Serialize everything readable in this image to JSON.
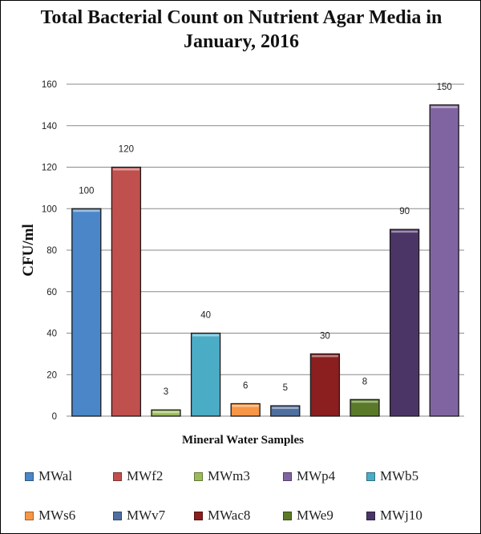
{
  "chart_data": {
    "type": "bar",
    "title": "Total Bacterial Count on Nutrient Agar Media in January, 2016",
    "xlabel": "Mineral Water Samples",
    "ylabel": "CFU/ml",
    "ylim": [
      0,
      160
    ],
    "yticks": [
      0,
      20,
      40,
      60,
      80,
      100,
      120,
      140,
      160
    ],
    "grid": true,
    "legend": "bottom",
    "categories": [
      "MWal",
      "MWf2",
      "MWm3",
      "MWp4",
      "MWb5",
      "MWs6",
      "MWv7",
      "MWac8",
      "MWe9",
      "MWj10"
    ],
    "values": [
      100,
      120,
      3,
      150,
      40,
      6,
      5,
      30,
      8,
      90
    ],
    "data_labels": [
      "100",
      "120",
      "3",
      "150",
      "40",
      "6",
      "5",
      "30",
      "8",
      "90"
    ],
    "colors": [
      "#4a86c8",
      "#c0504d",
      "#9bbb59",
      "#8064a2",
      "#4bacc6",
      "#f79646",
      "#4f6f9f",
      "#8b1e1e",
      "#5a7a2a",
      "#4b3566"
    ],
    "bar_order": [
      0,
      1,
      2,
      4,
      5,
      6,
      7,
      8,
      9,
      3
    ]
  }
}
